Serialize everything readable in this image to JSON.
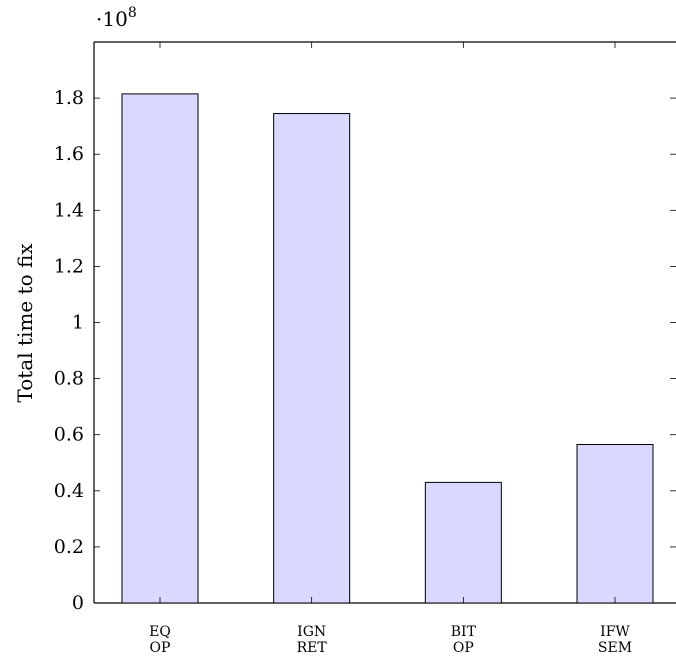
{
  "chart_data": {
    "type": "bar",
    "categories": [
      [
        "EQ",
        "OP"
      ],
      [
        "IGN",
        "RET"
      ],
      [
        "BIT",
        "OP"
      ],
      [
        "IFW",
        "SEM"
      ]
    ],
    "values": [
      181500000,
      174500000,
      43000000,
      56500000
    ],
    "ylabel": "Total time to fix",
    "xlabel": "",
    "title": "",
    "ylim": [
      0,
      200000000
    ],
    "yticks": [
      0,
      0.2,
      0.4,
      0.6,
      0.8,
      1,
      1.2,
      1.4,
      1.6,
      1.8
    ],
    "ytick_labels": [
      "0",
      "0.2",
      "0.4",
      "0.6",
      "0.8",
      "1",
      "1.2",
      "1.4",
      "1.6",
      "1.8"
    ],
    "scale_base": "·10",
    "scale_exponent": "8",
    "grid": false,
    "colors": {
      "bar_fill": "#d9d9ff",
      "bar_stroke": "#000000",
      "axis": "#000000"
    }
  }
}
